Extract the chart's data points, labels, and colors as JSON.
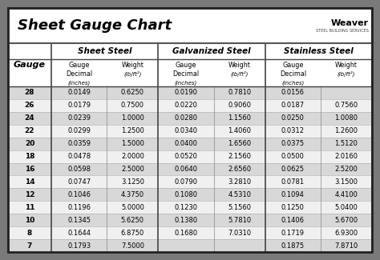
{
  "title": "Sheet Gauge Chart",
  "bg_outer": "#7a7a7a",
  "bg_inner": "#ffffff",
  "bg_row_odd": "#d8d8d8",
  "bg_row_even": "#f0f0f0",
  "bg_header_area": "#ffffff",
  "col_headers": [
    "Sheet Steel",
    "Galvanized Steel",
    "Stainless Steel"
  ],
  "gauges": [
    28,
    26,
    24,
    22,
    20,
    18,
    16,
    14,
    12,
    11,
    10,
    8,
    7
  ],
  "sheet_steel": [
    [
      "0.0149",
      "0.6250"
    ],
    [
      "0.0179",
      "0.7500"
    ],
    [
      "0.0239",
      "1.0000"
    ],
    [
      "0.0299",
      "1.2500"
    ],
    [
      "0.0359",
      "1.5000"
    ],
    [
      "0.0478",
      "2.0000"
    ],
    [
      "0.0598",
      "2.5000"
    ],
    [
      "0.0747",
      "3.1250"
    ],
    [
      "0.1046",
      "4.3750"
    ],
    [
      "0.1196",
      "5.0000"
    ],
    [
      "0.1345",
      "5.6250"
    ],
    [
      "0.1644",
      "6.8750"
    ],
    [
      "0.1793",
      "7.5000"
    ]
  ],
  "galvanized_steel": [
    [
      "0.0190",
      "0.7810"
    ],
    [
      "0.0220",
      "0.9060"
    ],
    [
      "0.0280",
      "1.1560"
    ],
    [
      "0.0340",
      "1.4060"
    ],
    [
      "0.0400",
      "1.6560"
    ],
    [
      "0.0520",
      "2.1560"
    ],
    [
      "0.0640",
      "2.6560"
    ],
    [
      "0.0790",
      "3.2810"
    ],
    [
      "0.1080",
      "4.5310"
    ],
    [
      "0.1230",
      "5.1560"
    ],
    [
      "0.1380",
      "5.7810"
    ],
    [
      "0.1680",
      "7.0310"
    ],
    [
      "",
      ""
    ]
  ],
  "stainless_steel": [
    [
      "0.0156",
      ""
    ],
    [
      "0.0187",
      "0.7560"
    ],
    [
      "0.0250",
      "1.0080"
    ],
    [
      "0.0312",
      "1.2600"
    ],
    [
      "0.0375",
      "1.5120"
    ],
    [
      "0.0500",
      "2.0160"
    ],
    [
      "0.0625",
      "2.5200"
    ],
    [
      "0.0781",
      "3.1500"
    ],
    [
      "0.1094",
      "4.4100"
    ],
    [
      "0.1250",
      "5.0400"
    ],
    [
      "0.1406",
      "5.6700"
    ],
    [
      "0.1719",
      "6.9300"
    ],
    [
      "0.1875",
      "7.8710"
    ]
  ]
}
